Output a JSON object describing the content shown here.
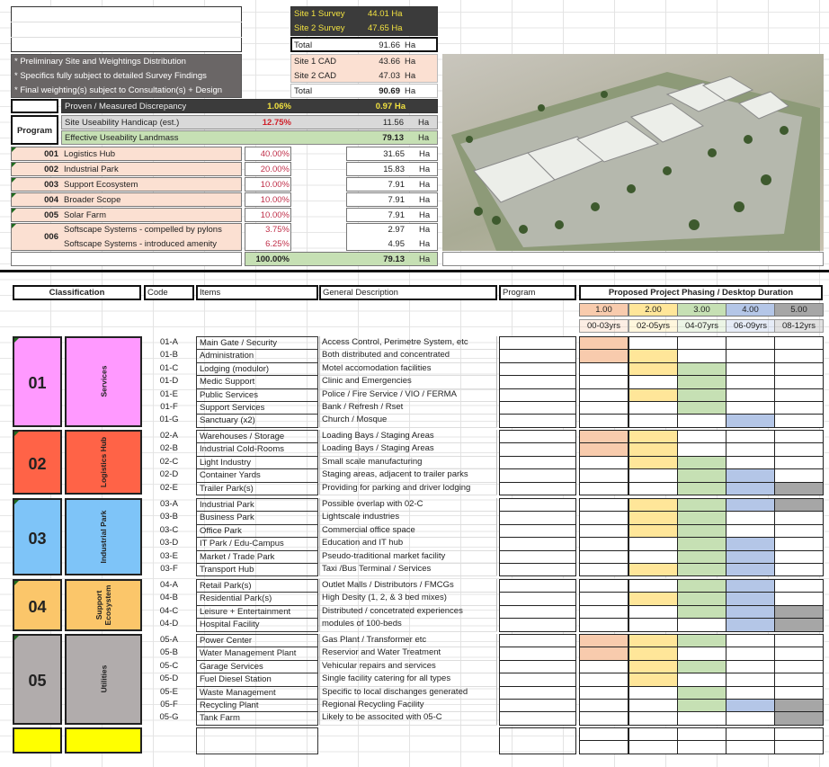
{
  "survey": {
    "site1_label": "Site 1 Survey",
    "site1_value": "44.01 Ha",
    "site2_label": "Site 2 Survey",
    "site2_value": "47.65 Ha",
    "total_label": "Total",
    "total_value": "91.66",
    "unit": "Ha"
  },
  "cad": {
    "site1_label": "Site 1 CAD",
    "site1_value": "43.66",
    "site2_label": "Site 2 CAD",
    "site2_value": "47.03",
    "total_label": "Total",
    "total_value": "90.69",
    "unit": "Ha"
  },
  "notes": [
    "* Preliminary Site and Weightings Distribution",
    "* Specifics fully subject to detailed Survey Findings",
    "* Final weighting(s) subject to Consultation(s) + Design"
  ],
  "discrepancy": {
    "label": "Proven / Measured Discrepancy",
    "percent": "1.06%",
    "value": "0.97 Ha"
  },
  "program_label": "Program",
  "handicap": {
    "label": "Site Useability Handicap (est.)",
    "percent": "12.75%",
    "value": "11.56",
    "unit": "Ha"
  },
  "effective": {
    "label": "Effective Useability Landmass",
    "value": "79.13",
    "unit": "Ha"
  },
  "programs": [
    {
      "code": "001",
      "name": "Logistics Hub",
      "percent": "40.00%",
      "value": "31.65",
      "unit": "Ha"
    },
    {
      "code": "002",
      "name": "Industrial Park",
      "percent": "20.00%",
      "value": "15.83",
      "unit": "Ha"
    },
    {
      "code": "003",
      "name": "Support Ecosystem",
      "percent": "10.00%",
      "value": "7.91",
      "unit": "Ha"
    },
    {
      "code": "004",
      "name": "Broader Scope",
      "percent": "10.00%",
      "value": "7.91",
      "unit": "Ha"
    },
    {
      "code": "005",
      "name": "Solar Farm",
      "percent": "10.00%",
      "value": "7.91",
      "unit": "Ha"
    }
  ],
  "program_006": {
    "code": "006",
    "name1": "Softscape Systems - compelled by pylons",
    "percent1": "3.75%",
    "value1": "2.97",
    "name2": "Softscape Systems - introduced amenity",
    "percent2": "6.25%",
    "value2": "4.95",
    "unit": "Ha"
  },
  "program_total": {
    "percent": "100.00%",
    "value": "79.13",
    "unit": "Ha"
  },
  "table_headers": {
    "classification": "Classification",
    "code": "Code",
    "items": "Items",
    "description": "General Description",
    "program": "Program",
    "phasing": "Proposed Project Phasing / Desktop Duration"
  },
  "phases": [
    {
      "num": "1.00",
      "years": "00-03yrs",
      "color": "#f8cbad"
    },
    {
      "num": "2.00",
      "years": "02-05yrs",
      "color": "#ffe699"
    },
    {
      "num": "3.00",
      "years": "04-07yrs",
      "color": "#c6e0b4"
    },
    {
      "num": "4.00",
      "years": "06-09yrs",
      "color": "#b4c6e7"
    },
    {
      "num": "5.00",
      "years": "08-12yrs",
      "color": "#a6a6a6"
    }
  ],
  "groups": [
    {
      "num": "01",
      "label": "Services",
      "color": "#ff99ff",
      "items": [
        {
          "code": "01-A",
          "item": "Main Gate / Security",
          "desc": "Access Control, Perimetre System, etc",
          "phases": [
            1
          ]
        },
        {
          "code": "01-B",
          "item": "Administration",
          "desc": "Both distributed and concentrated",
          "phases": [
            1,
            2
          ]
        },
        {
          "code": "01-C",
          "item": "Lodging (modulor)",
          "desc": "Motel accomodation facilities",
          "phases": [
            2,
            3
          ]
        },
        {
          "code": "01-D",
          "item": "Medic Support",
          "desc": "Clinic and Emergencies",
          "phases": [
            3
          ]
        },
        {
          "code": "01-E",
          "item": "Public Services",
          "desc": "Police / Fire Service / VIO / FERMA",
          "phases": [
            2,
            3
          ]
        },
        {
          "code": "01-F",
          "item": "Support Services",
          "desc": "Bank / Refresh / Rset",
          "phases": [
            3
          ]
        },
        {
          "code": "01-G",
          "item": "Sanctuary (x2)",
          "desc": "Church / Mosque",
          "phases": [
            4
          ]
        }
      ]
    },
    {
      "num": "02",
      "label": "Logistics Hub",
      "color": "#ff6347",
      "items": [
        {
          "code": "02-A",
          "item": "Warehouses / Storage",
          "desc": "Loading Bays / Staging Areas",
          "phases": [
            1,
            2
          ]
        },
        {
          "code": "02-B",
          "item": "Industrial Cold-Rooms",
          "desc": "Loading Bays / Staging Areas",
          "phases": [
            1,
            2
          ]
        },
        {
          "code": "02-C",
          "item": "Light Industry",
          "desc": "Small scale manufacturing",
          "phases": [
            2,
            3
          ]
        },
        {
          "code": "02-D",
          "item": "Container Yards",
          "desc": "Staging areas, adjacent to trailer parks",
          "phases": [
            3,
            4
          ]
        },
        {
          "code": "02-E",
          "item": "Trailer Park(s)",
          "desc": "Providing for parking and driver lodging",
          "phases": [
            3,
            4,
            5
          ]
        }
      ]
    },
    {
      "num": "03",
      "label": "Industrial Park",
      "color": "#7ec4f8",
      "items": [
        {
          "code": "03-A",
          "item": "Industrial Park",
          "desc": "Possible overlap with 02-C",
          "phases": [
            2,
            3,
            4,
            5
          ]
        },
        {
          "code": "03-B",
          "item": "Business Park",
          "desc": "Lightscale industries",
          "phases": [
            2,
            3
          ]
        },
        {
          "code": "03-C",
          "item": "Office Park",
          "desc": "Commercial office space",
          "phases": [
            2,
            3
          ]
        },
        {
          "code": "03-D",
          "item": "IT Park / Edu-Campus",
          "desc": "Education and IT hub",
          "phases": [
            3,
            4
          ]
        },
        {
          "code": "03-E",
          "item": "Market / Trade Park",
          "desc": "Pseudo-traditional market facility",
          "phases": [
            3,
            4
          ]
        },
        {
          "code": "03-F",
          "item": "Transport Hub",
          "desc": "Taxi /Bus Terminal / Services",
          "phases": [
            2,
            3,
            4
          ]
        }
      ]
    },
    {
      "num": "04",
      "label": "Support Ecosystem",
      "color": "#fbc66a",
      "items": [
        {
          "code": "04-A",
          "item": "Retail Park(s)",
          "desc": "Outlet Malls / Distributors / FMCGs",
          "phases": [
            3,
            4
          ]
        },
        {
          "code": "04-B",
          "item": "Residential Park(s)",
          "desc": "High Desity (1, 2, & 3 bed mixes)",
          "phases": [
            2,
            3,
            4
          ]
        },
        {
          "code": "04-C",
          "item": "Leisure + Entertainment",
          "desc": "Distributed / concetrated experiences",
          "phases": [
            3,
            4,
            5
          ]
        },
        {
          "code": "04-D",
          "item": "Hospital Facility",
          "desc": "modules of 100-beds",
          "phases": [
            4,
            5
          ]
        }
      ]
    },
    {
      "num": "05",
      "label": "Utilities",
      "color": "#b1acac",
      "items": [
        {
          "code": "05-A",
          "item": "Power Center",
          "desc": "Gas Plant / Transformer etc",
          "phases": [
            1,
            2,
            3
          ]
        },
        {
          "code": "05-B",
          "item": "Water Management Plant",
          "desc": "Reservior and Water Treatment",
          "phases": [
            1,
            2
          ]
        },
        {
          "code": "05-C",
          "item": "Garage Services",
          "desc": "Vehicular repairs and services",
          "phases": [
            2,
            3
          ]
        },
        {
          "code": "05-D",
          "item": "Fuel Diesel Station",
          "desc": "Single facility catering for all types",
          "phases": [
            2
          ]
        },
        {
          "code": "05-E",
          "item": "Waste Management",
          "desc": "Specific to local dischanges generated",
          "phases": [
            3
          ]
        },
        {
          "code": "05-F",
          "item": "Recycling Plant",
          "desc": "Regional Recycling Facility",
          "phases": [
            3,
            4,
            5
          ]
        },
        {
          "code": "05-G",
          "item": "Tank Farm",
          "desc": "Likely to be associted with 05-C",
          "phases": [
            5
          ]
        }
      ]
    }
  ],
  "blank_group_color": "#ffff00"
}
